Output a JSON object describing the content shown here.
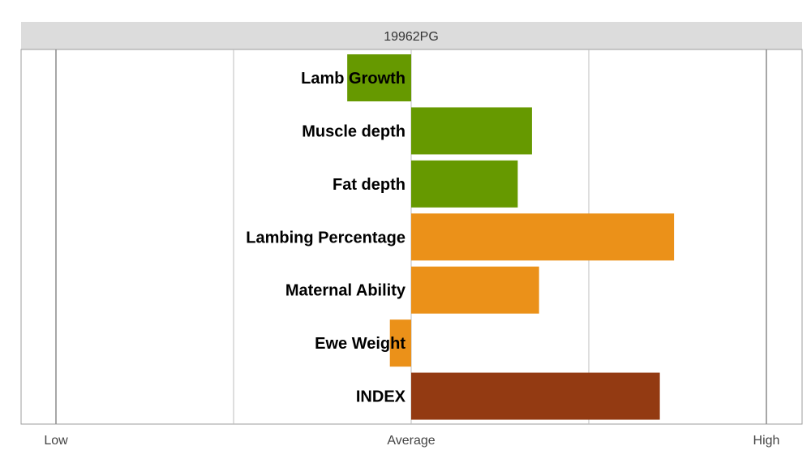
{
  "chart_data": {
    "type": "bar",
    "orientation": "horizontal",
    "title": "19962PG",
    "categories": [
      "Lamb Growth",
      "Muscle depth",
      "Fat depth",
      "Lambing Percentage",
      "Maternal Ability",
      "Ewe Weight",
      "INDEX"
    ],
    "values": [
      -0.36,
      0.68,
      0.6,
      1.48,
      0.72,
      -0.12,
      1.4
    ],
    "bar_colors": [
      "#669900",
      "#669900",
      "#669900",
      "#eb9119",
      "#eb9119",
      "#eb9119",
      "#933a12"
    ],
    "xlim": [
      -2,
      2
    ],
    "x_ticks": [
      {
        "value": -2,
        "label": "Low"
      },
      {
        "value": 0,
        "label": "Average"
      },
      {
        "value": 2,
        "label": "High"
      }
    ],
    "gridlines": [
      -2,
      -1,
      0,
      1,
      2
    ],
    "grid": true,
    "title_background": "#dcdcdc",
    "gridline_color": "#bdbdbd"
  }
}
